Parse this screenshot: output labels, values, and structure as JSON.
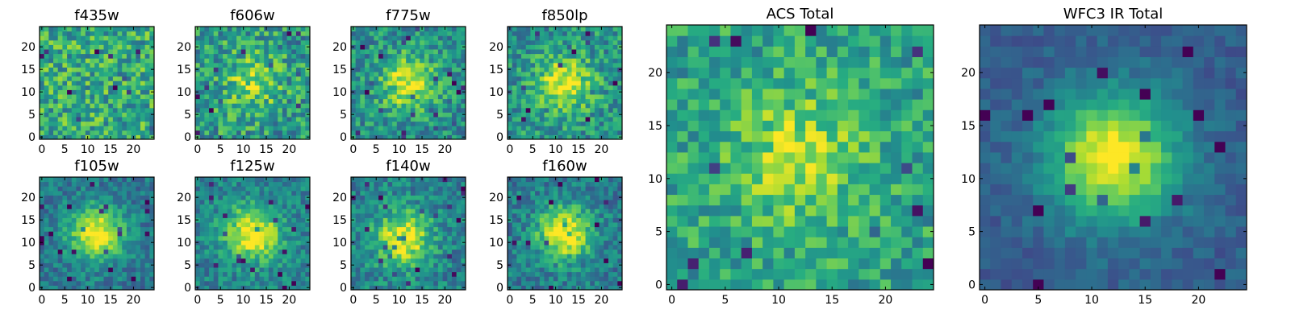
{
  "chart_data": [
    {
      "type": "heatmap",
      "title": "f435w",
      "xticks": [
        "0",
        "5",
        "10",
        "15",
        "20"
      ],
      "yticks": [
        "0",
        "5",
        "10",
        "15",
        "20"
      ],
      "xlim": [
        -0.5,
        24.5
      ],
      "ylim": [
        -0.5,
        24.5
      ],
      "grid": false,
      "colormap": "viridis",
      "peak": [
        12,
        12
      ],
      "peak_strength": 0.0,
      "noise": 0.5,
      "base": 0.62
    },
    {
      "type": "heatmap",
      "title": "f606w",
      "xticks": [
        "0",
        "5",
        "10",
        "15",
        "20"
      ],
      "yticks": [
        "0",
        "5",
        "10",
        "15",
        "20"
      ],
      "xlim": [
        -0.5,
        24.5
      ],
      "ylim": [
        -0.5,
        24.5
      ],
      "grid": false,
      "colormap": "viridis",
      "peak": [
        12,
        12
      ],
      "peak_strength": 0.3,
      "noise": 0.5,
      "base": 0.55
    },
    {
      "type": "heatmap",
      "title": "f775w",
      "xticks": [
        "0",
        "5",
        "10",
        "15",
        "20"
      ],
      "yticks": [
        "0",
        "5",
        "10",
        "15",
        "20"
      ],
      "xlim": [
        -0.5,
        24.5
      ],
      "ylim": [
        -0.5,
        24.5
      ],
      "grid": false,
      "colormap": "viridis",
      "peak": [
        12,
        12
      ],
      "peak_strength": 0.45,
      "noise": 0.42,
      "base": 0.5
    },
    {
      "type": "heatmap",
      "title": "f850lp",
      "xticks": [
        "0",
        "5",
        "10",
        "15",
        "20"
      ],
      "yticks": [
        "0",
        "5",
        "10",
        "15",
        "20"
      ],
      "xlim": [
        -0.5,
        24.5
      ],
      "ylim": [
        -0.5,
        24.5
      ],
      "grid": false,
      "colormap": "viridis",
      "peak": [
        12,
        12
      ],
      "peak_strength": 0.45,
      "noise": 0.42,
      "base": 0.52
    },
    {
      "type": "heatmap",
      "title": "f105w",
      "xticks": [
        "0",
        "5",
        "10",
        "15",
        "20"
      ],
      "yticks": [
        "0",
        "5",
        "10",
        "15",
        "20"
      ],
      "xlim": [
        -0.5,
        24.5
      ],
      "ylim": [
        -0.5,
        24.5
      ],
      "grid": false,
      "colormap": "viridis",
      "peak": [
        12,
        12
      ],
      "peak_strength": 0.62,
      "noise": 0.3,
      "base": 0.4
    },
    {
      "type": "heatmap",
      "title": "f125w",
      "xticks": [
        "0",
        "5",
        "10",
        "15",
        "20"
      ],
      "yticks": [
        "0",
        "5",
        "10",
        "15",
        "20"
      ],
      "xlim": [
        -0.5,
        24.5
      ],
      "ylim": [
        -0.5,
        24.5
      ],
      "grid": false,
      "colormap": "viridis",
      "peak": [
        12,
        12
      ],
      "peak_strength": 0.58,
      "noise": 0.32,
      "base": 0.45
    },
    {
      "type": "heatmap",
      "title": "f140w",
      "xticks": [
        "0",
        "5",
        "10",
        "15",
        "20"
      ],
      "yticks": [
        "0",
        "5",
        "10",
        "15",
        "20"
      ],
      "xlim": [
        -0.5,
        24.5
      ],
      "ylim": [
        -0.5,
        24.5
      ],
      "grid": false,
      "colormap": "viridis",
      "peak": [
        11,
        11
      ],
      "peak_strength": 0.55,
      "noise": 0.35,
      "base": 0.45
    },
    {
      "type": "heatmap",
      "title": "f160w",
      "xticks": [
        "0",
        "5",
        "10",
        "15",
        "20"
      ],
      "yticks": [
        "0",
        "5",
        "10",
        "15",
        "20"
      ],
      "xlim": [
        -0.5,
        24.5
      ],
      "ylim": [
        -0.5,
        24.5
      ],
      "grid": false,
      "colormap": "viridis",
      "peak": [
        12,
        12
      ],
      "peak_strength": 0.6,
      "noise": 0.34,
      "base": 0.42
    },
    {
      "type": "heatmap",
      "title": "ACS Total",
      "xticks": [
        "0",
        "5",
        "10",
        "15",
        "20"
      ],
      "yticks": [
        "0",
        "5",
        "10",
        "15",
        "20"
      ],
      "xlim": [
        -0.5,
        24.5
      ],
      "ylim": [
        -0.5,
        24.5
      ],
      "grid": false,
      "colormap": "viridis",
      "peak": [
        12,
        12
      ],
      "peak_strength": 0.32,
      "noise": 0.38,
      "base": 0.58
    },
    {
      "type": "heatmap",
      "title": "WFC3 IR Total",
      "xticks": [
        "0",
        "5",
        "10",
        "15",
        "20"
      ],
      "yticks": [
        "0",
        "5",
        "10",
        "15",
        "20"
      ],
      "xlim": [
        -0.5,
        24.5
      ],
      "ylim": [
        -0.5,
        24.5
      ],
      "grid": false,
      "colormap": "viridis",
      "peak": [
        12,
        12
      ],
      "peak_strength": 0.72,
      "noise": 0.16,
      "base": 0.3
    }
  ]
}
